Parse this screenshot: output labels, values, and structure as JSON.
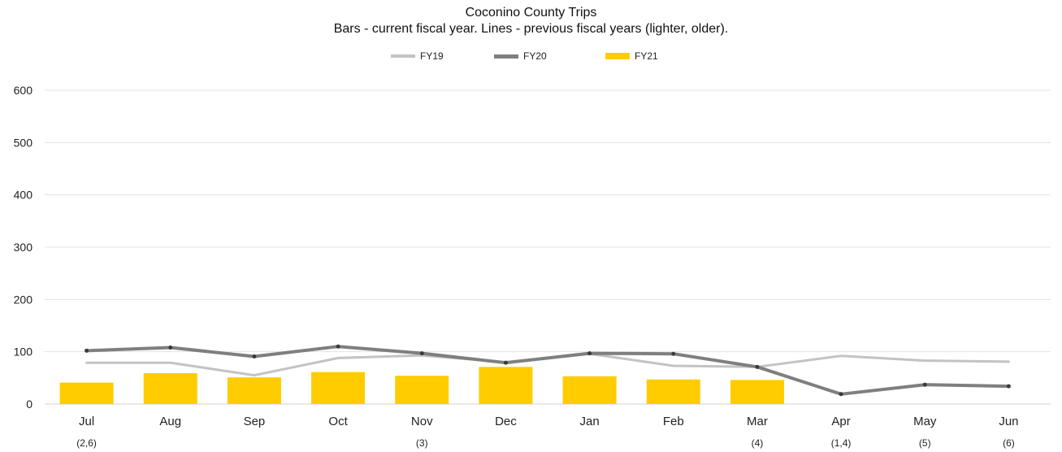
{
  "chart_data": {
    "type": "bar",
    "title": "Coconino County Trips",
    "subtitle": "Bars - current fiscal year. Lines - previous fiscal years (lighter, older).",
    "categories": [
      "Jul",
      "Aug",
      "Sep",
      "Oct",
      "Nov",
      "Dec",
      "Jan",
      "Feb",
      "Mar",
      "Apr",
      "May",
      "Jun"
    ],
    "category_notes": [
      "(2,6)",
      "",
      "",
      "",
      "(3)",
      "",
      "",
      "",
      "(4)",
      "(1,4)",
      "(5)",
      "(6)"
    ],
    "ylim": [
      0,
      600
    ],
    "yticks": [
      0,
      100,
      200,
      300,
      400,
      500,
      600
    ],
    "grid": true,
    "legend_position": "top-center",
    "series": [
      {
        "name": "FY19",
        "kind": "line",
        "color": "#c3c3c3",
        "values": [
          79,
          79,
          55,
          88,
          93,
          80,
          96,
          73,
          71,
          92,
          83,
          81
        ]
      },
      {
        "name": "FY20",
        "kind": "line",
        "color": "#7f7f7f",
        "values": [
          102,
          108,
          91,
          110,
          97,
          79,
          97,
          96,
          71,
          19,
          37,
          34
        ]
      },
      {
        "name": "FY21",
        "kind": "bar",
        "color": "#ffcc00",
        "values": [
          41,
          59,
          51,
          61,
          54,
          71,
          53,
          47,
          46,
          null,
          null,
          null
        ]
      }
    ]
  }
}
